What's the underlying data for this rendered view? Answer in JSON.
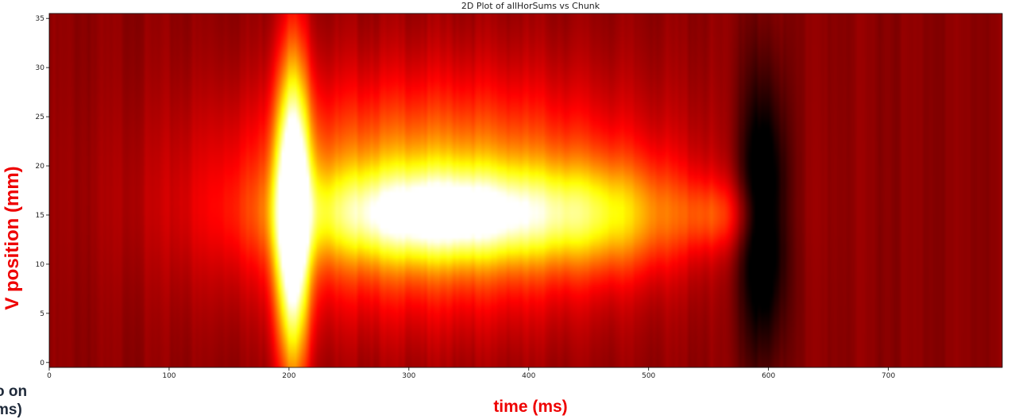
{
  "chart_data": {
    "type": "heatmap",
    "title": "2D Plot of allHorSums vs Chunk",
    "xlabel": "time (ms)",
    "ylabel": "V position (mm)",
    "xlim": [
      0,
      795
    ],
    "ylim": [
      -0.5,
      35.5
    ],
    "x_ticks": [
      0,
      100,
      200,
      300,
      400,
      500,
      600,
      700
    ],
    "y_ticks": [
      0,
      5,
      10,
      15,
      20,
      25,
      30,
      35
    ],
    "colormap": "hot",
    "label_color": "#ee0000",
    "blobs": [
      {
        "x": 203,
        "y": 15,
        "sx": 10,
        "sy": 11,
        "intensity": 0.95
      },
      {
        "x": 330,
        "y": 15,
        "sx": 80,
        "sy": 3.2,
        "intensity": 0.55
      },
      {
        "x": 320,
        "y": 17,
        "sx": 120,
        "sy": 8,
        "intensity": 0.45
      },
      {
        "x": 470,
        "y": 15,
        "sx": 45,
        "sy": 4,
        "intensity": 0.25
      },
      {
        "x": 560,
        "y": 15,
        "sx": 25,
        "sy": 2.5,
        "intensity": 0.18
      }
    ],
    "dark_region": {
      "x": 595,
      "y": 15,
      "sx": 15,
      "sy": 10,
      "intensity": -0.35
    },
    "background_level": 0.2
  },
  "side_note": "o on\nms)"
}
